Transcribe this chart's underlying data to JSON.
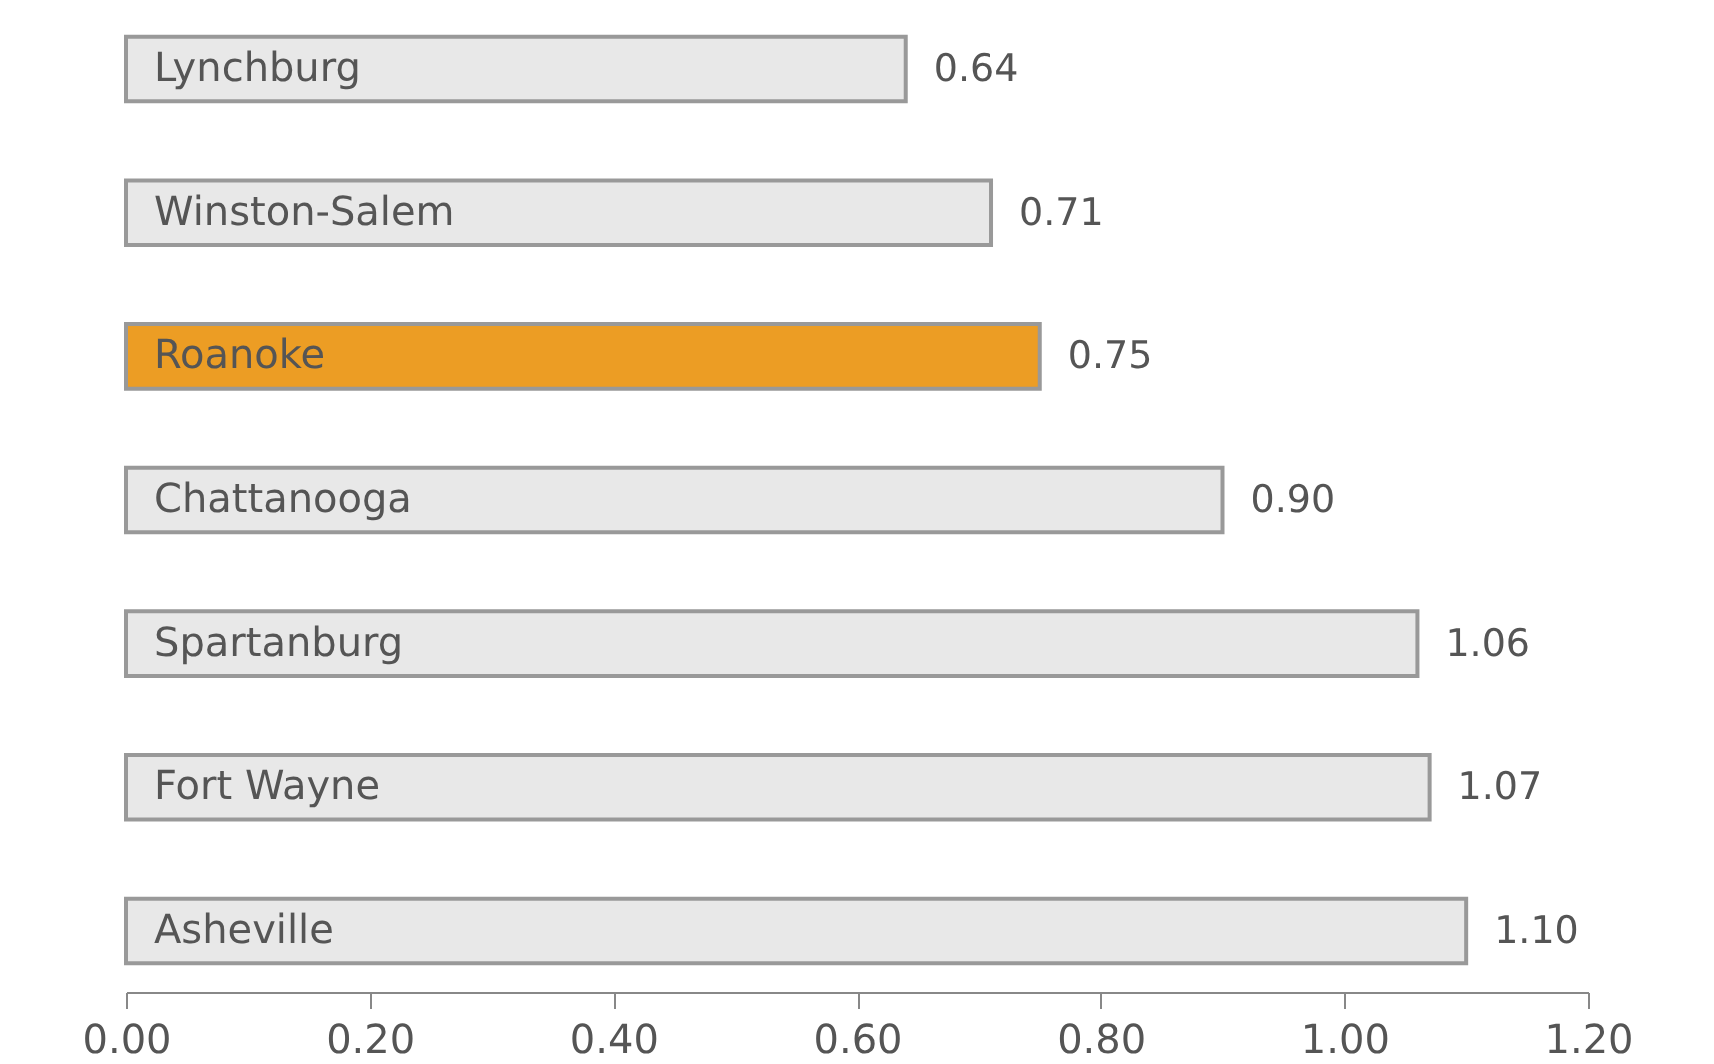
{
  "chart_data": {
    "type": "bar",
    "orientation": "horizontal",
    "categories": [
      "Lynchburg",
      "Winston-Salem",
      "Roanoke",
      "Chattanooga",
      "Spartanburg",
      "Fort Wayne",
      "Asheville"
    ],
    "values": [
      0.64,
      0.71,
      0.75,
      0.9,
      1.06,
      1.07,
      1.1
    ],
    "colors": [
      "#e8e8e8",
      "#e8e8e8",
      "#ec9d24",
      "#e8e8e8",
      "#e8e8e8",
      "#e8e8e8",
      "#e8e8e8"
    ],
    "value_labels": [
      "0.64",
      "0.71",
      "0.75",
      "0.90",
      "1.06",
      "1.07",
      "1.10"
    ],
    "xlim": [
      0,
      1.2
    ],
    "xticks": [
      {
        "value": 0,
        "label": "0.00"
      },
      {
        "value": 0.2,
        "label": "0.20"
      },
      {
        "value": 0.4,
        "label": "0.40"
      },
      {
        "value": 0.6,
        "label": "0.60"
      },
      {
        "value": 0.8,
        "label": "0.80"
      },
      {
        "value": 1.0,
        "label": "1.00"
      },
      {
        "value": 1.2,
        "label": "1.20"
      }
    ],
    "tick_labels": "x",
    "grid": false
  }
}
